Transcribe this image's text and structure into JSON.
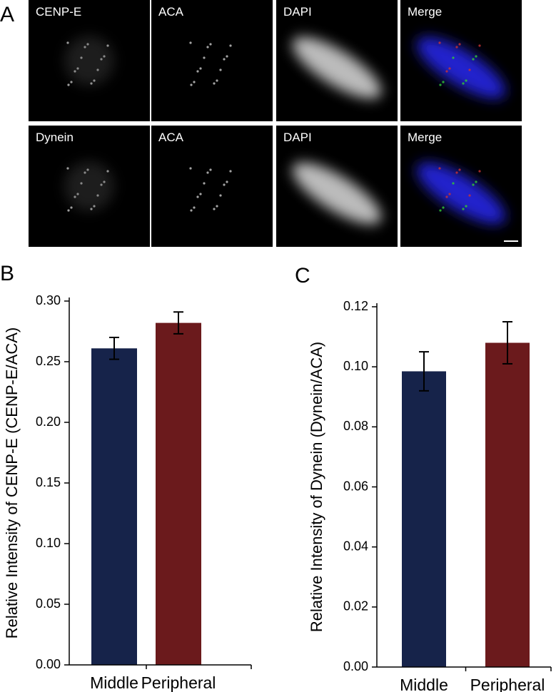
{
  "panel_a": {
    "label": "A",
    "rows": [
      [
        "CENP-E",
        "ACA",
        "DAPI",
        "Merge"
      ],
      [
        "Dynein",
        "ACA",
        "DAPI",
        "Merge"
      ]
    ]
  },
  "chart_data": [
    {
      "type": "bar",
      "label": "B",
      "y_label": "Relative Intensity of CENP-E (CENP-E/ACA)",
      "categories": [
        "Middle",
        "Peripheral"
      ],
      "values": [
        0.261,
        0.282
      ],
      "errors": [
        0.009,
        0.009
      ],
      "colors": [
        "#16234a",
        "#6b1a1c"
      ],
      "ylim": [
        0,
        0.3
      ],
      "yticks": [
        {
          "value": 0,
          "label": "0.00"
        },
        0.05,
        {
          "value": 0.1,
          "label": "0.10"
        },
        0.15,
        {
          "value": 0.2,
          "label": "0.20"
        },
        0.25,
        {
          "value": 0.3,
          "label": "0.30"
        }
      ]
    },
    {
      "type": "bar",
      "label": "C",
      "y_label": "Relative Intensity of Dynein (Dynein/ACA)",
      "categories": [
        "Middle",
        "Peripheral"
      ],
      "values": [
        0.0985,
        0.108
      ],
      "errors": [
        0.0065,
        0.007
      ],
      "colors": [
        "#16234a",
        "#6b1a1c"
      ],
      "ylim": [
        0,
        0.12
      ],
      "yticks": [
        {
          "value": 0,
          "label": "0.00"
        },
        0.02,
        0.04,
        0.06,
        0.08,
        {
          "value": 0.1,
          "label": "0.10"
        },
        0.12
      ]
    }
  ]
}
